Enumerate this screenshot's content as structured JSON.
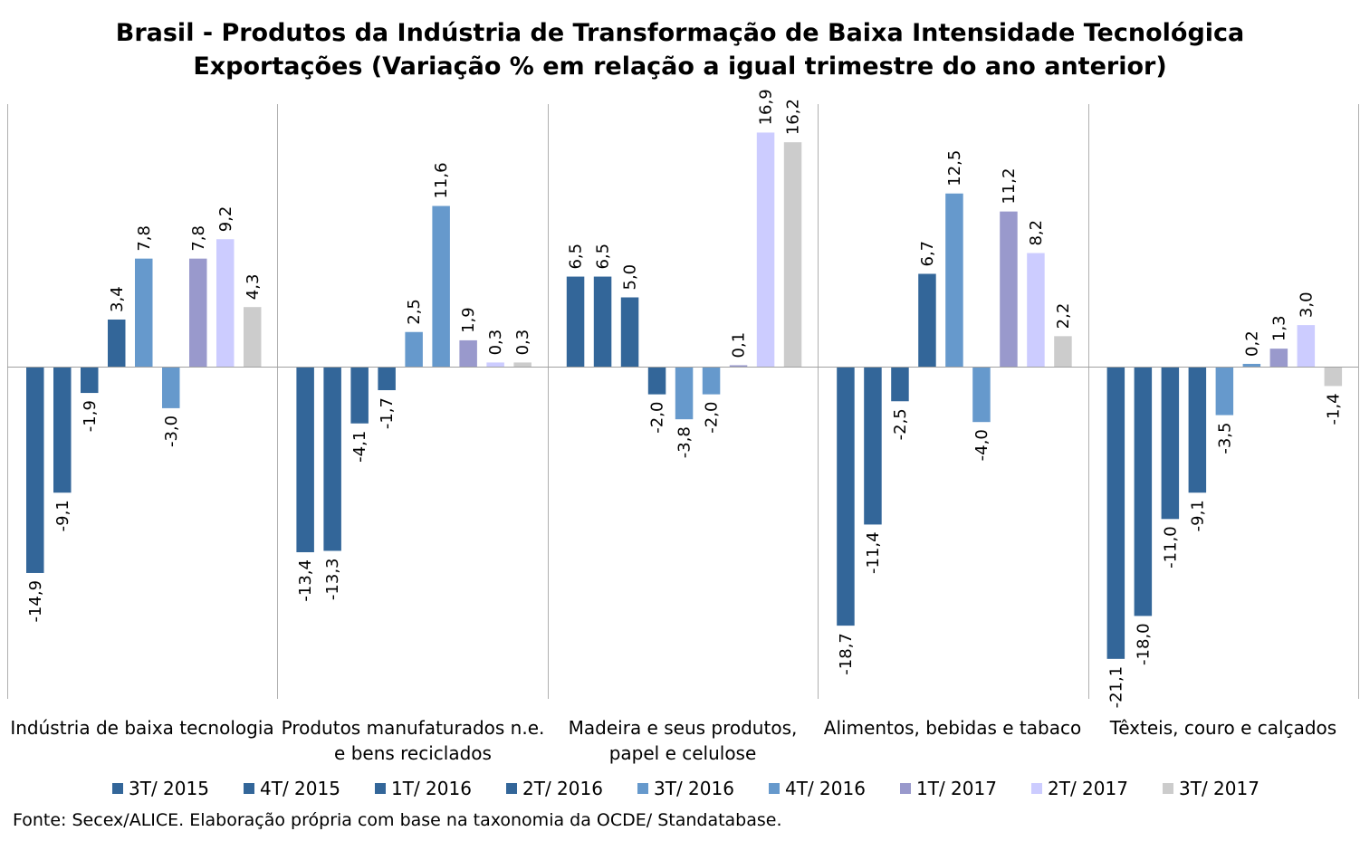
{
  "chart_data": {
    "type": "bar",
    "title": "Brasil - Produtos da Indústria de Transformação de Baixa Intensidade Tecnológica",
    "subtitle": "Exportações (Variação % em relação a igual trimestre do ano anterior)",
    "categories": [
      {
        "line1": "Indústria de baixa tecnologia",
        "line2": ""
      },
      {
        "line1": "Produtos manufaturados n.e.",
        "line2": "e bens reciclados"
      },
      {
        "line1": "Madeira e seus produtos,",
        "line2": "papel e celulose"
      },
      {
        "line1": "Alimentos, bebidas e tabaco",
        "line2": ""
      },
      {
        "line1": "Têxteis, couro e calçados",
        "line2": ""
      }
    ],
    "series": [
      {
        "name": "3T/ 2015",
        "color": "#336699",
        "values": [
          -14.9,
          -13.4,
          6.5,
          -18.7,
          -21.1
        ],
        "labels": [
          "-14,9",
          "-13,4",
          "6,5",
          "-18,7",
          "-21,1"
        ]
      },
      {
        "name": "4T/ 2015",
        "color": "#336699",
        "values": [
          -9.1,
          -13.3,
          6.5,
          -11.4,
          -18.0
        ],
        "labels": [
          "-9,1",
          "-13,3",
          "6,5",
          "-11,4",
          "-18,0"
        ]
      },
      {
        "name": "1T/ 2016",
        "color": "#336699",
        "values": [
          -1.9,
          -4.1,
          5.0,
          -2.5,
          -11.0
        ],
        "labels": [
          "-1,9",
          "-4,1",
          "5,0",
          "-2,5",
          "-11,0"
        ]
      },
      {
        "name": "2T/ 2016",
        "color": "#336699",
        "values": [
          3.4,
          -1.7,
          -2.0,
          6.7,
          -9.1
        ],
        "labels": [
          "3,4",
          "-1,7",
          "-2,0",
          "6,7",
          "-9,1"
        ]
      },
      {
        "name": "3T/ 2016",
        "color": "#6699CC",
        "values": [
          7.8,
          2.5,
          -3.8,
          12.5,
          -3.5
        ],
        "labels": [
          "7,8",
          "2,5",
          "-3,8",
          "12,5",
          "-3,5"
        ]
      },
      {
        "name": "4T/ 2016",
        "color": "#6699CC",
        "values": [
          -3.0,
          11.6,
          -2.0,
          -4.0,
          0.2
        ],
        "labels": [
          "-3,0",
          "11,6",
          "-2,0",
          "-4,0",
          "0,2"
        ]
      },
      {
        "name": "1T/ 2017",
        "color": "#9999CC",
        "values": [
          7.8,
          1.9,
          0.1,
          11.2,
          1.3
        ],
        "labels": [
          "7,8",
          "1,9",
          "0,1",
          "11,2",
          "1,3"
        ]
      },
      {
        "name": "2T/ 2017",
        "color": "#CCCCFF",
        "values": [
          9.2,
          0.3,
          16.9,
          8.2,
          3.0
        ],
        "labels": [
          "9,2",
          "0,3",
          "16,9",
          "8,2",
          "3,0"
        ]
      },
      {
        "name": "3T/ 2017",
        "color": "#CCCCCC",
        "values": [
          4.3,
          0.3,
          16.2,
          2.2,
          -1.4
        ],
        "labels": [
          "4,3",
          "0,3",
          "16,2",
          "2,2",
          "-1,4"
        ]
      }
    ],
    "ylim": [
      -21.1,
      16.9
    ],
    "legend_position": "bottom",
    "grid": false
  },
  "source_note": "Fonte: Secex/ALICE. Elaboração própria com base na taxonomia da OCDE/ Standatabase."
}
